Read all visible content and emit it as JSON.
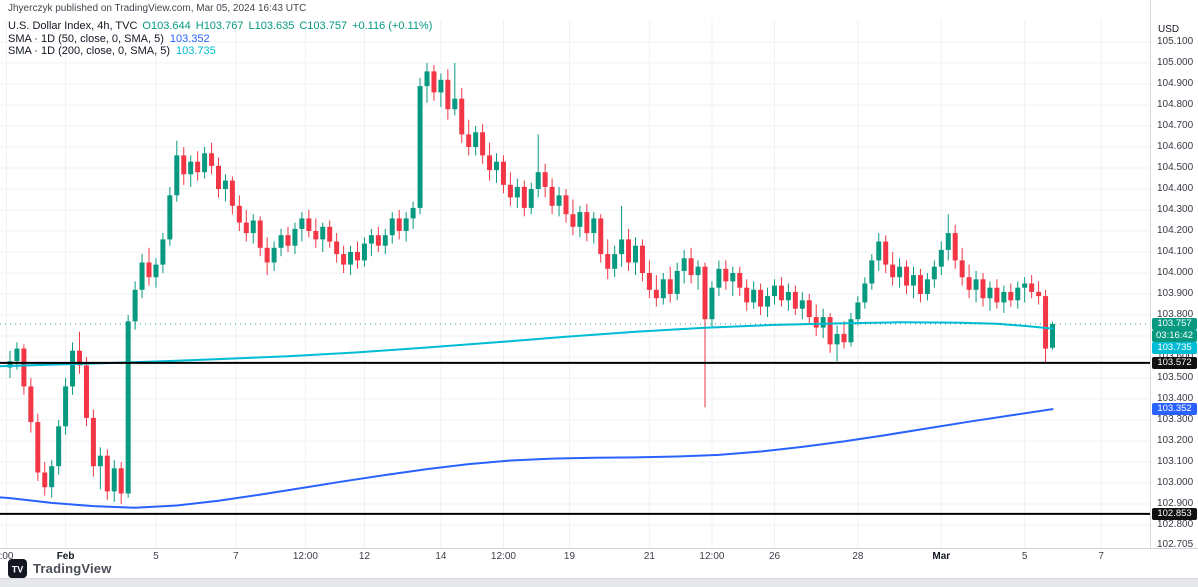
{
  "header": {
    "attribution": "Jhyerczyk published on TradingView.com, Mar 05, 2024 16:43 UTC"
  },
  "legend": {
    "symbol_line": {
      "title": "U.S. Dollar Index, 4h, TVC",
      "ohlc": [
        {
          "label": "O",
          "value": "103.644"
        },
        {
          "label": "H",
          "value": "103.767"
        },
        {
          "label": "L",
          "value": "103.635"
        },
        {
          "label": "C",
          "value": "103.757"
        }
      ],
      "change": "+0.116 (+0.11%)"
    },
    "indicators": [
      {
        "name": "SMA · 1D (50, close, 0, SMA, 5)",
        "value": "103.352",
        "color": "#2962ff"
      },
      {
        "name": "SMA · 1D (200, close, 0, SMA, 5)",
        "value": "103.735",
        "color": "#00bcd4"
      }
    ]
  },
  "axis": {
    "currency": "USD",
    "price_ticks": [
      "105.100",
      "105.000",
      "104.900",
      "104.800",
      "104.700",
      "104.600",
      "104.500",
      "104.400",
      "104.300",
      "104.200",
      "104.100",
      "104.000",
      "103.900",
      "103.800",
      "103.700",
      "103.600",
      "103.500",
      "103.400",
      "103.300",
      "103.200",
      "103.100",
      "103.000",
      "102.900",
      "102.800",
      "102.705"
    ],
    "time_ticks": [
      {
        "label": ":00",
        "i": -0.5
      },
      {
        "label": "Feb",
        "i": 8,
        "major": true
      },
      {
        "label": "5",
        "i": 21
      },
      {
        "label": "7",
        "i": 32.5
      },
      {
        "label": "12:00",
        "i": 42.5
      },
      {
        "label": "12",
        "i": 51
      },
      {
        "label": "14",
        "i": 62
      },
      {
        "label": "12:00",
        "i": 71
      },
      {
        "label": "19",
        "i": 80.5
      },
      {
        "label": "21",
        "i": 92
      },
      {
        "label": "12:00",
        "i": 101
      },
      {
        "label": "26",
        "i": 110
      },
      {
        "label": "28",
        "i": 122
      },
      {
        "label": "Mar",
        "i": 134,
        "major": true
      },
      {
        "label": "5",
        "i": 146
      },
      {
        "label": "7",
        "i": 157
      }
    ]
  },
  "badges": [
    {
      "text": "103.757",
      "price": 103.757,
      "dy": 0,
      "bg": "#089981",
      "name": "last-price-badge"
    },
    {
      "text": "03:16:42",
      "price": 103.757,
      "dy": 12,
      "bg": "#089981",
      "name": "countdown-badge"
    },
    {
      "text": "103.735",
      "price": 103.735,
      "dy": 19,
      "bg": "#00bcd4",
      "name": "sma200-price-badge"
    },
    {
      "text": "103.572",
      "price": 103.572,
      "dy": 0,
      "bg": "#101010",
      "name": "support-line-badge-upper"
    },
    {
      "text": "103.352",
      "price": 103.352,
      "dy": 0,
      "bg": "#2962ff",
      "name": "sma50-price-badge"
    },
    {
      "text": "102.853",
      "price": 102.853,
      "dy": 0,
      "bg": "#101010",
      "name": "support-line-badge-lower"
    }
  ],
  "footer": {
    "brand": "TradingView",
    "logo_mark": "TV"
  },
  "chart_data": {
    "type": "candlestick",
    "title": "U.S. Dollar Index",
    "symbol": "U.S. Dollar Index",
    "exchange": "TVC",
    "interval": "4h",
    "grid": true,
    "legend_position": "top-left",
    "y_range": [
      102.705,
      105.1
    ],
    "current_price": 103.757,
    "countdown": "03:16:42",
    "colors": {
      "up": "#089981",
      "down": "#f23645",
      "hline": "#000000",
      "sma50": "#2962ff",
      "sma200": "#00bcd4"
    },
    "hlines": [
      {
        "price": 103.572
      },
      {
        "price": 102.853
      }
    ],
    "ohlc": [
      [
        103.55,
        103.63,
        103.5,
        103.58
      ],
      [
        103.58,
        103.67,
        103.54,
        103.64
      ],
      [
        103.64,
        103.66,
        103.42,
        103.46
      ],
      [
        103.46,
        103.5,
        103.24,
        103.29
      ],
      [
        103.29,
        103.33,
        103.01,
        103.05
      ],
      [
        103.05,
        103.1,
        102.94,
        102.98
      ],
      [
        102.98,
        103.11,
        102.93,
        103.08
      ],
      [
        103.08,
        103.3,
        103.04,
        103.27
      ],
      [
        103.27,
        103.5,
        103.23,
        103.46
      ],
      [
        103.46,
        103.67,
        103.42,
        103.63
      ],
      [
        103.63,
        103.72,
        103.52,
        103.56
      ],
      [
        103.56,
        103.6,
        103.27,
        103.31
      ],
      [
        103.31,
        103.35,
        103.03,
        103.08
      ],
      [
        103.08,
        103.17,
        102.97,
        103.13
      ],
      [
        103.13,
        103.16,
        102.92,
        102.96
      ],
      [
        102.96,
        103.11,
        102.91,
        103.07
      ],
      [
        103.07,
        103.1,
        102.9,
        102.95
      ],
      [
        102.95,
        103.8,
        102.93,
        103.77
      ],
      [
        103.77,
        103.96,
        103.73,
        103.92
      ],
      [
        103.92,
        104.09,
        103.88,
        104.05
      ],
      [
        104.05,
        104.12,
        103.94,
        103.98
      ],
      [
        103.98,
        104.07,
        103.93,
        104.04
      ],
      [
        104.04,
        104.19,
        104.0,
        104.16
      ],
      [
        104.16,
        104.41,
        104.13,
        104.37
      ],
      [
        104.37,
        104.63,
        104.34,
        104.56
      ],
      [
        104.56,
        104.6,
        104.42,
        104.47
      ],
      [
        104.47,
        104.56,
        104.41,
        104.53
      ],
      [
        104.53,
        104.58,
        104.44,
        104.48
      ],
      [
        104.48,
        104.6,
        104.45,
        104.57
      ],
      [
        104.57,
        104.62,
        104.47,
        104.51
      ],
      [
        104.51,
        104.55,
        104.36,
        104.4
      ],
      [
        104.4,
        104.47,
        104.34,
        104.44
      ],
      [
        104.44,
        104.46,
        104.28,
        104.32
      ],
      [
        104.32,
        104.37,
        104.2,
        104.24
      ],
      [
        104.24,
        104.3,
        104.15,
        104.19
      ],
      [
        104.19,
        104.28,
        104.14,
        104.25
      ],
      [
        104.25,
        104.27,
        104.08,
        104.12
      ],
      [
        104.12,
        104.17,
        103.99,
        104.05
      ],
      [
        104.05,
        104.15,
        104.01,
        104.12
      ],
      [
        104.12,
        104.21,
        104.08,
        104.18
      ],
      [
        104.18,
        104.22,
        104.1,
        104.13
      ],
      [
        104.13,
        104.24,
        104.09,
        104.21
      ],
      [
        104.21,
        104.29,
        104.15,
        104.26
      ],
      [
        104.26,
        104.3,
        104.17,
        104.2
      ],
      [
        104.2,
        104.26,
        104.12,
        104.16
      ],
      [
        104.16,
        104.24,
        104.1,
        104.22
      ],
      [
        104.22,
        104.25,
        104.12,
        104.15
      ],
      [
        104.15,
        104.19,
        104.05,
        104.09
      ],
      [
        104.09,
        104.13,
        104.0,
        104.04
      ],
      [
        104.04,
        104.13,
        103.99,
        104.1
      ],
      [
        104.1,
        104.15,
        104.02,
        104.06
      ],
      [
        104.06,
        104.17,
        104.03,
        104.14
      ],
      [
        104.14,
        104.21,
        104.08,
        104.18
      ],
      [
        104.18,
        104.22,
        104.1,
        104.13
      ],
      [
        104.13,
        104.21,
        104.09,
        104.18
      ],
      [
        104.18,
        104.29,
        104.14,
        104.26
      ],
      [
        104.26,
        104.3,
        104.16,
        104.2
      ],
      [
        104.2,
        104.29,
        104.15,
        104.26
      ],
      [
        104.26,
        104.34,
        104.21,
        104.31
      ],
      [
        104.31,
        104.93,
        104.28,
        104.89
      ],
      [
        104.89,
        105.0,
        104.81,
        104.96
      ],
      [
        104.96,
        104.99,
        104.82,
        104.86
      ],
      [
        104.86,
        104.95,
        104.79,
        104.92
      ],
      [
        104.92,
        104.97,
        104.73,
        104.78
      ],
      [
        104.78,
        105.0,
        104.75,
        104.83
      ],
      [
        104.83,
        104.88,
        104.62,
        104.66
      ],
      [
        104.66,
        104.73,
        104.56,
        104.6
      ],
      [
        104.6,
        104.7,
        104.56,
        104.67
      ],
      [
        104.67,
        104.71,
        104.52,
        104.56
      ],
      [
        104.56,
        104.62,
        104.44,
        104.49
      ],
      [
        104.49,
        104.57,
        104.43,
        104.53
      ],
      [
        104.53,
        104.56,
        104.38,
        104.42
      ],
      [
        104.42,
        104.48,
        104.32,
        104.36
      ],
      [
        104.36,
        104.45,
        104.31,
        104.41
      ],
      [
        104.41,
        104.44,
        104.27,
        104.31
      ],
      [
        104.31,
        104.43,
        104.28,
        104.4
      ],
      [
        104.4,
        104.66,
        104.36,
        104.48
      ],
      [
        104.48,
        104.52,
        104.36,
        104.41
      ],
      [
        104.41,
        104.45,
        104.28,
        104.32
      ],
      [
        104.32,
        104.41,
        104.27,
        104.37
      ],
      [
        104.37,
        104.4,
        104.24,
        104.28
      ],
      [
        104.28,
        104.35,
        104.18,
        104.22
      ],
      [
        104.22,
        104.32,
        104.17,
        104.29
      ],
      [
        104.29,
        104.33,
        104.15,
        104.19
      ],
      [
        104.19,
        104.29,
        104.14,
        104.26
      ],
      [
        104.26,
        104.28,
        104.05,
        104.09
      ],
      [
        104.09,
        104.16,
        103.97,
        104.02
      ],
      [
        104.02,
        104.13,
        103.98,
        104.09
      ],
      [
        104.09,
        104.32,
        104.03,
        104.16
      ],
      [
        104.16,
        104.21,
        104.01,
        104.05
      ],
      [
        104.05,
        104.17,
        103.99,
        104.13
      ],
      [
        104.13,
        104.16,
        103.96,
        104.0
      ],
      [
        104.0,
        104.06,
        103.88,
        103.92
      ],
      [
        103.92,
        103.99,
        103.84,
        103.88
      ],
      [
        103.88,
        104.0,
        103.85,
        103.97
      ],
      [
        103.97,
        104.03,
        103.86,
        103.9
      ],
      [
        103.9,
        104.05,
        103.87,
        104.01
      ],
      [
        104.01,
        104.11,
        103.95,
        104.07
      ],
      [
        104.07,
        104.12,
        103.95,
        103.99
      ],
      [
        103.99,
        104.06,
        103.92,
        104.03
      ],
      [
        104.03,
        104.05,
        103.36,
        103.78
      ],
      [
        103.78,
        103.96,
        103.74,
        103.93
      ],
      [
        103.93,
        104.06,
        103.89,
        104.02
      ],
      [
        104.02,
        104.06,
        103.92,
        103.96
      ],
      [
        103.96,
        104.03,
        103.89,
        104.0
      ],
      [
        104.0,
        104.03,
        103.89,
        103.93
      ],
      [
        103.93,
        103.97,
        103.82,
        103.86
      ],
      [
        103.86,
        103.96,
        103.83,
        103.92
      ],
      [
        103.92,
        103.95,
        103.8,
        103.84
      ],
      [
        103.84,
        103.93,
        103.79,
        103.89
      ],
      [
        103.89,
        103.97,
        103.85,
        103.94
      ],
      [
        103.94,
        103.98,
        103.84,
        103.87
      ],
      [
        103.87,
        103.95,
        103.82,
        103.91
      ],
      [
        103.91,
        103.94,
        103.8,
        103.83
      ],
      [
        103.83,
        103.91,
        103.78,
        103.87
      ],
      [
        103.87,
        103.9,
        103.76,
        103.79
      ],
      [
        103.79,
        103.85,
        103.7,
        103.74
      ],
      [
        103.74,
        103.83,
        103.69,
        103.79
      ],
      [
        103.79,
        103.81,
        103.62,
        103.66
      ],
      [
        103.66,
        103.75,
        103.58,
        103.71
      ],
      [
        103.71,
        103.77,
        103.64,
        103.67
      ],
      [
        103.67,
        103.81,
        103.65,
        103.78
      ],
      [
        103.78,
        103.89,
        103.75,
        103.86
      ],
      [
        103.86,
        103.98,
        103.83,
        103.95
      ],
      [
        103.95,
        104.09,
        103.92,
        104.06
      ],
      [
        104.06,
        104.19,
        104.01,
        104.15
      ],
      [
        104.15,
        104.18,
        104.0,
        104.04
      ],
      [
        104.04,
        104.1,
        103.94,
        103.98
      ],
      [
        103.98,
        104.07,
        103.93,
        104.03
      ],
      [
        104.03,
        104.06,
        103.9,
        103.94
      ],
      [
        103.94,
        104.03,
        103.88,
        103.99
      ],
      [
        103.99,
        104.02,
        103.86,
        103.9
      ],
      [
        103.9,
        104.0,
        103.87,
        103.97
      ],
      [
        103.97,
        104.06,
        103.93,
        104.03
      ],
      [
        104.03,
        104.15,
        103.99,
        104.11
      ],
      [
        104.11,
        104.28,
        104.06,
        104.19
      ],
      [
        104.19,
        104.23,
        104.02,
        104.06
      ],
      [
        104.06,
        104.12,
        103.94,
        103.98
      ],
      [
        103.98,
        104.04,
        103.88,
        103.92
      ],
      [
        103.92,
        104.01,
        103.86,
        103.97
      ],
      [
        103.97,
        104.0,
        103.84,
        103.88
      ],
      [
        103.88,
        103.96,
        103.82,
        103.93
      ],
      [
        103.93,
        103.97,
        103.83,
        103.86
      ],
      [
        103.86,
        103.94,
        103.81,
        103.91
      ],
      [
        103.91,
        103.95,
        103.84,
        103.87
      ],
      [
        103.87,
        103.96,
        103.83,
        103.93
      ],
      [
        103.93,
        103.98,
        103.86,
        103.95
      ],
      [
        103.95,
        103.99,
        103.88,
        103.91
      ],
      [
        103.91,
        103.96,
        103.85,
        103.89
      ],
      [
        103.89,
        103.92,
        103.57,
        103.64
      ],
      [
        103.644,
        103.767,
        103.635,
        103.757
      ]
    ],
    "overlays": [
      {
        "name": "SMA 200 1D",
        "color": "#00bcd4",
        "points": [
          [
            -1.5,
            103.556
          ],
          [
            6,
            103.564
          ],
          [
            14,
            103.571
          ],
          [
            22,
            103.58
          ],
          [
            30,
            103.59
          ],
          [
            40,
            103.604
          ],
          [
            50,
            103.622
          ],
          [
            60,
            103.645
          ],
          [
            70,
            103.67
          ],
          [
            80,
            103.696
          ],
          [
            90,
            103.72
          ],
          [
            100,
            103.739
          ],
          [
            110,
            103.753
          ],
          [
            120,
            103.761
          ],
          [
            128,
            103.765
          ],
          [
            136,
            103.764
          ],
          [
            142,
            103.758
          ],
          [
            146,
            103.748
          ],
          [
            150,
            103.735
          ]
        ]
      },
      {
        "name": "SMA 50 1D",
        "color": "#2962ff",
        "points": [
          [
            -1.5,
            102.932
          ],
          [
            0,
            102.928
          ],
          [
            6,
            102.905
          ],
          [
            12,
            102.89
          ],
          [
            18,
            102.882
          ],
          [
            24,
            102.893
          ],
          [
            30,
            102.915
          ],
          [
            36,
            102.945
          ],
          [
            42,
            102.976
          ],
          [
            48,
            103.008
          ],
          [
            54,
            103.038
          ],
          [
            60,
            103.066
          ],
          [
            66,
            103.09
          ],
          [
            72,
            103.107
          ],
          [
            78,
            103.116
          ],
          [
            84,
            103.12
          ],
          [
            90,
            103.122
          ],
          [
            96,
            103.126
          ],
          [
            102,
            103.134
          ],
          [
            108,
            103.15
          ],
          [
            114,
            103.172
          ],
          [
            120,
            103.198
          ],
          [
            126,
            103.228
          ],
          [
            132,
            103.26
          ],
          [
            138,
            103.292
          ],
          [
            144,
            103.322
          ],
          [
            150,
            103.352
          ]
        ]
      }
    ]
  }
}
